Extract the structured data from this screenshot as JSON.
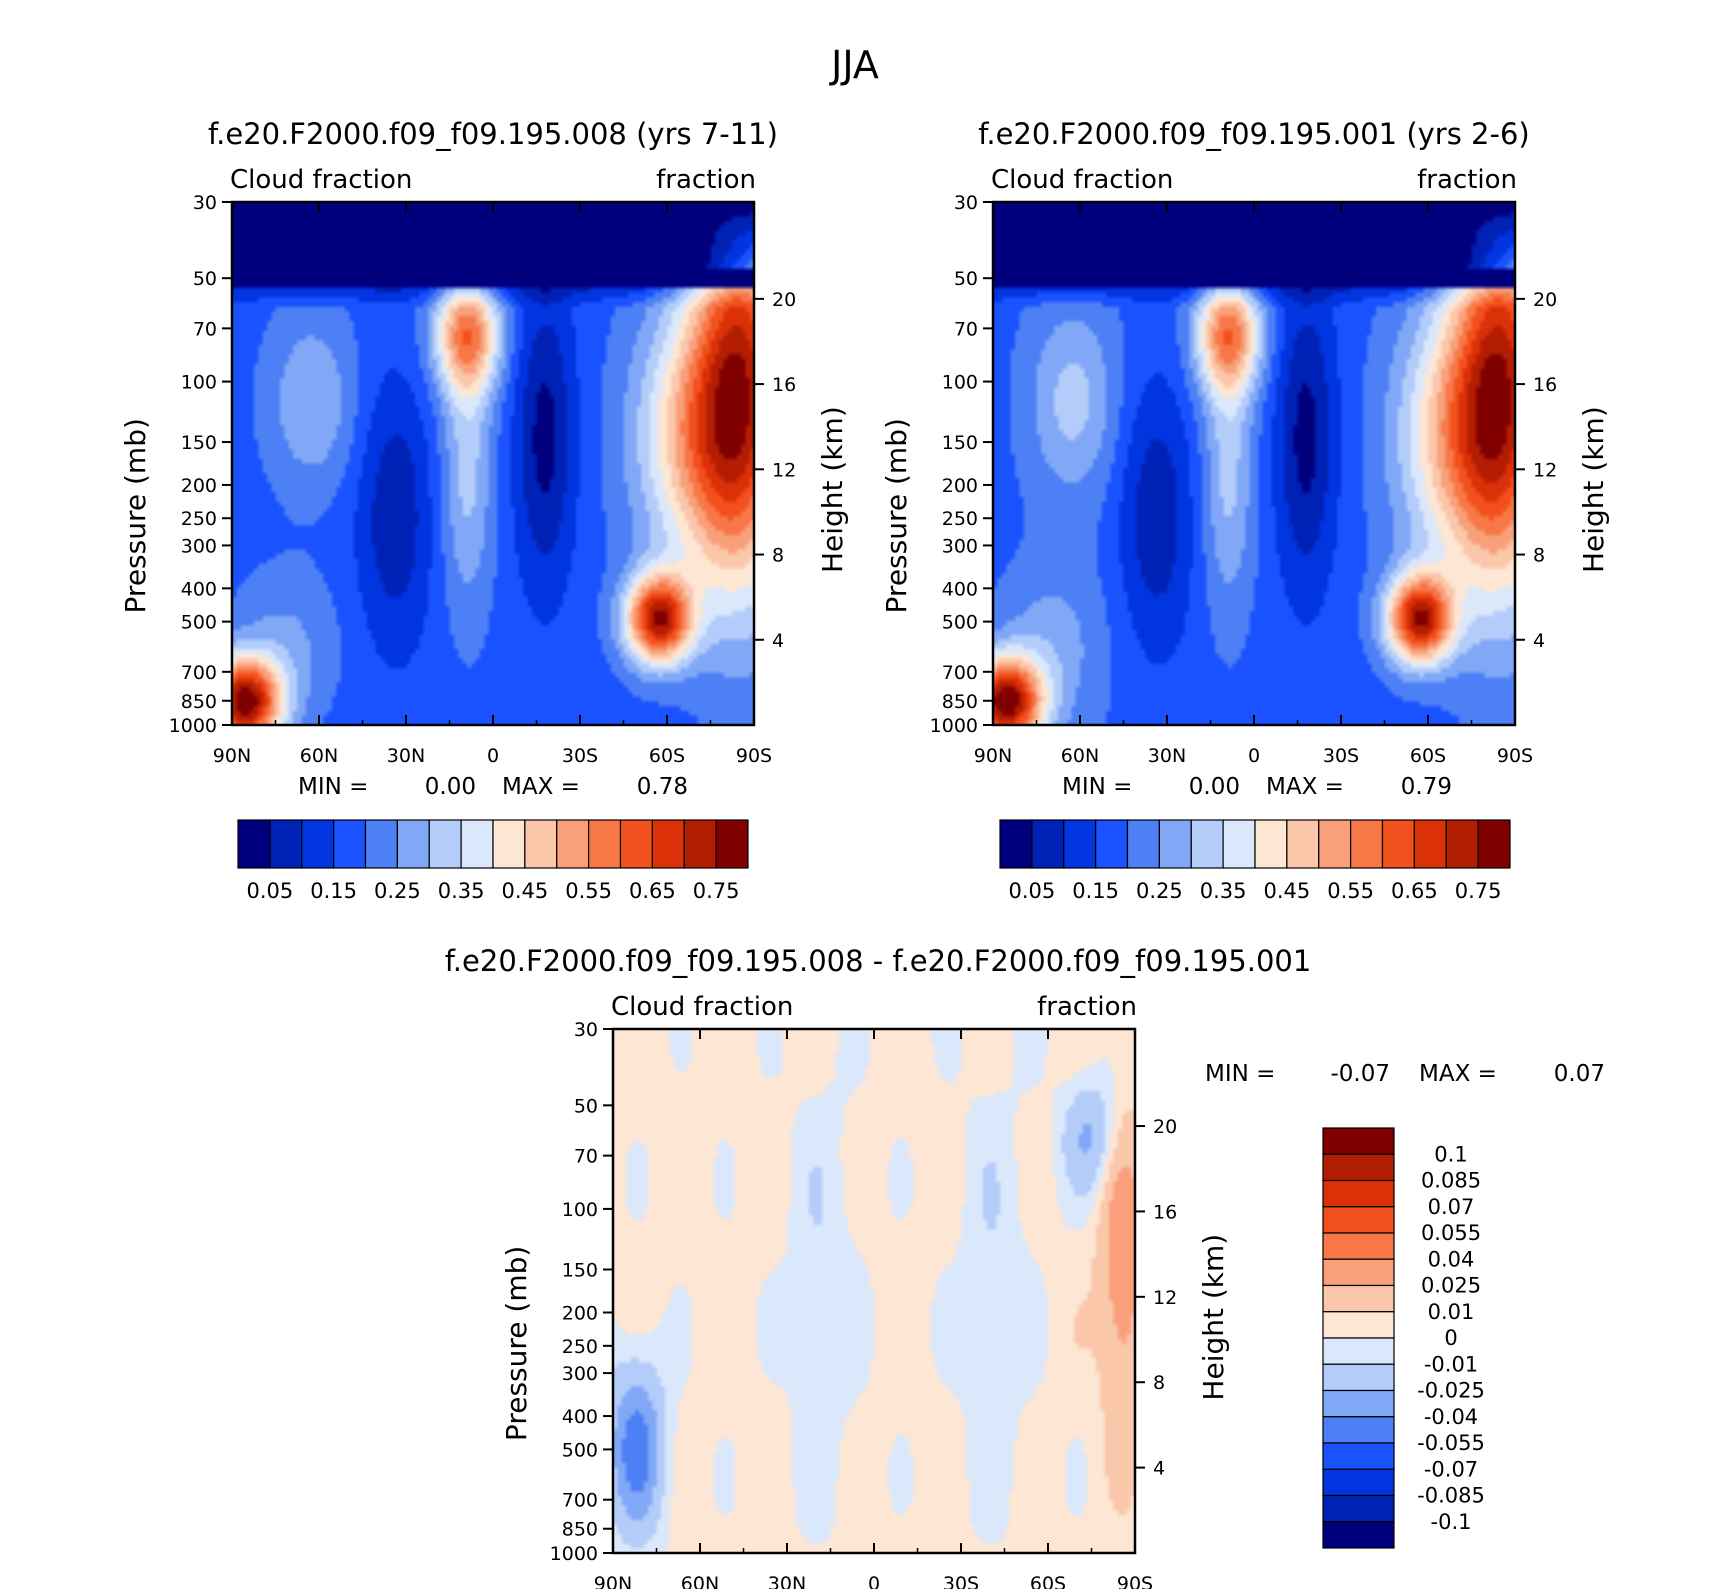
{
  "figure": {
    "season": "JJA"
  },
  "chart_data": [
    {
      "type": "heatmap",
      "title": "f.e20.F2000.f09_f09.195.008 (yrs 7-11)",
      "left_label": "Cloud fraction",
      "right_label": "fraction",
      "xlabel": "",
      "ylabel": "Pressure (mb)",
      "ylabel_right": "Height (km)",
      "x_ticks": [
        "90N",
        "60N",
        "30N",
        "0",
        "30S",
        "60S",
        "90S"
      ],
      "y_ticks": [
        30,
        50,
        70,
        100,
        150,
        200,
        250,
        300,
        400,
        500,
        700,
        850,
        1000
      ],
      "y_right_ticks": [
        20,
        16,
        12,
        8,
        4
      ],
      "min_label": "MIN =",
      "max_label": "MAX =",
      "min": "0.00",
      "max": "0.78",
      "colorbar_labels": [
        "0.05",
        "0.15",
        "0.25",
        "0.35",
        "0.45",
        "0.55",
        "0.65",
        "0.75"
      ]
    },
    {
      "type": "heatmap",
      "title": "f.e20.F2000.f09_f09.195.001 (yrs 2-6)",
      "left_label": "Cloud fraction",
      "right_label": "fraction",
      "xlabel": "",
      "ylabel": "Pressure (mb)",
      "ylabel_right": "Height (km)",
      "x_ticks": [
        "90N",
        "60N",
        "30N",
        "0",
        "30S",
        "60S",
        "90S"
      ],
      "y_ticks": [
        30,
        50,
        70,
        100,
        150,
        200,
        250,
        300,
        400,
        500,
        700,
        850,
        1000
      ],
      "y_right_ticks": [
        20,
        16,
        12,
        8,
        4
      ],
      "min_label": "MIN =",
      "max_label": "MAX =",
      "min": "0.00",
      "max": "0.79",
      "colorbar_labels": [
        "0.05",
        "0.15",
        "0.25",
        "0.35",
        "0.45",
        "0.55",
        "0.65",
        "0.75"
      ]
    },
    {
      "type": "heatmap",
      "title": "f.e20.F2000.f09_f09.195.008 - f.e20.F2000.f09_f09.195.001",
      "left_label": "Cloud fraction",
      "right_label": "fraction",
      "xlabel": "",
      "ylabel": "Pressure (mb)",
      "ylabel_right": "Height (km)",
      "x_ticks": [
        "90N",
        "60N",
        "30N",
        "0",
        "30S",
        "60S",
        "90S"
      ],
      "y_ticks": [
        30,
        50,
        70,
        100,
        150,
        200,
        250,
        300,
        400,
        500,
        700,
        850,
        1000
      ],
      "y_right_ticks": [
        20,
        16,
        12,
        8,
        4
      ],
      "min_label": "MIN =",
      "max_label": "MAX =",
      "min": "-0.07",
      "max": "0.07",
      "colorbar_labels": [
        "0.1",
        "0.085",
        "0.07",
        "0.055",
        "0.04",
        "0.025",
        "0.01",
        "0",
        "-0.01",
        "-0.025",
        "-0.04",
        "-0.055",
        "-0.07",
        "-0.085",
        "-0.1"
      ]
    }
  ],
  "colormaps": {
    "abs": [
      "#00007f",
      "#0021b5",
      "#0035e0",
      "#1a52ff",
      "#4d7ff5",
      "#80a8f7",
      "#b3ccfa",
      "#dbe8fb",
      "#fde6d3",
      "#fbc7ab",
      "#f9a07b",
      "#f77747",
      "#f2501c",
      "#db3108",
      "#b31d02",
      "#800000"
    ],
    "diff": [
      "#00007f",
      "#0021b5",
      "#0035e0",
      "#1a52ff",
      "#4d7ff5",
      "#80a8f7",
      "#b3ccfa",
      "#dbe8fb",
      "#fde6d3",
      "#fbc7ab",
      "#f9a07b",
      "#f77747",
      "#f2501c",
      "#db3108",
      "#b31d02",
      "#800000"
    ]
  }
}
